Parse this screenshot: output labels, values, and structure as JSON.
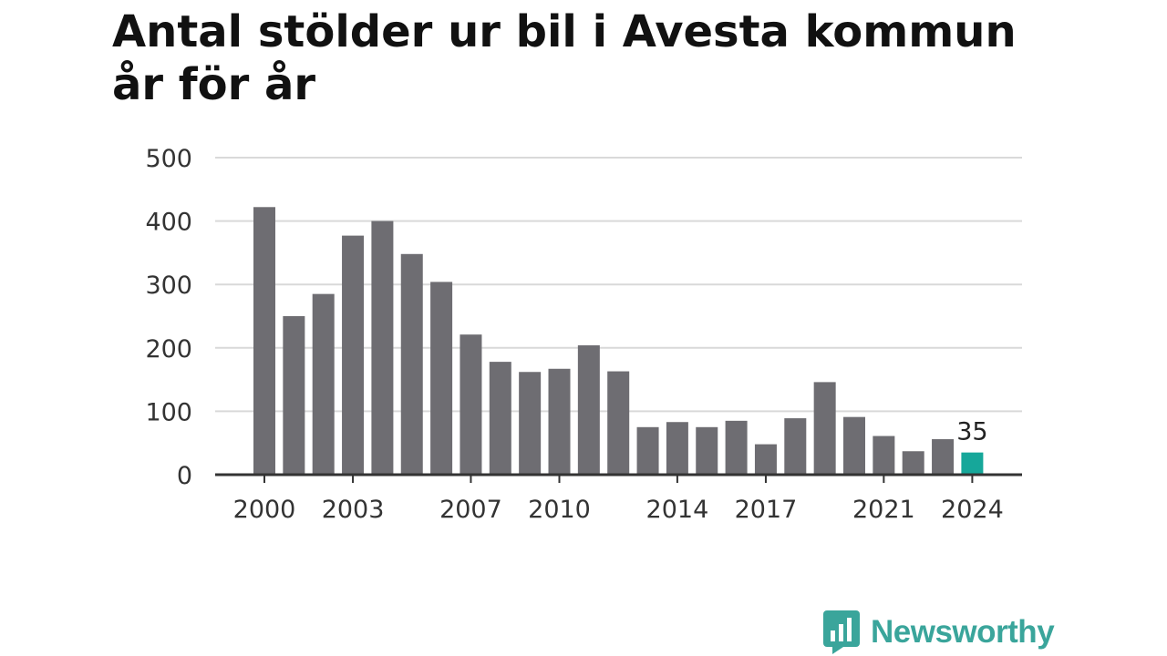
{
  "title": "Antal stölder ur bil i Avesta kommun år för år",
  "brand": {
    "name": "Newsworthy",
    "logo_icon": "bar-chart-speech-bubble-icon",
    "color": "#3aa59b"
  },
  "colors": {
    "bar": "#6e6d72",
    "highlight": "#16a79a",
    "grid": "#d9d9d9",
    "axis": "#333333"
  },
  "chart_data": {
    "type": "bar",
    "title": "Antal stölder ur bil i Avesta kommun år för år",
    "categories": [
      "2000",
      "2001",
      "2002",
      "2003",
      "2004",
      "2005",
      "2006",
      "2007",
      "2008",
      "2009",
      "2010",
      "2011",
      "2012",
      "2013",
      "2014",
      "2015",
      "2016",
      "2017",
      "2018",
      "2019",
      "2020",
      "2021",
      "2022",
      "2023",
      "2024"
    ],
    "values": [
      422,
      250,
      285,
      377,
      400,
      348,
      304,
      221,
      178,
      162,
      167,
      204,
      163,
      75,
      83,
      75,
      85,
      48,
      89,
      146,
      91,
      61,
      37,
      56,
      35
    ],
    "x_tick_labels": [
      "2000",
      "2003",
      "2007",
      "2010",
      "2014",
      "2017",
      "2021",
      "2024"
    ],
    "y_ticks": [
      0,
      100,
      200,
      300,
      400,
      500
    ],
    "ylim": [
      0,
      500
    ],
    "highlight": {
      "category": "2024",
      "value_label": "35"
    },
    "grid": true,
    "legend": "none",
    "xlabel": "",
    "ylabel": ""
  }
}
